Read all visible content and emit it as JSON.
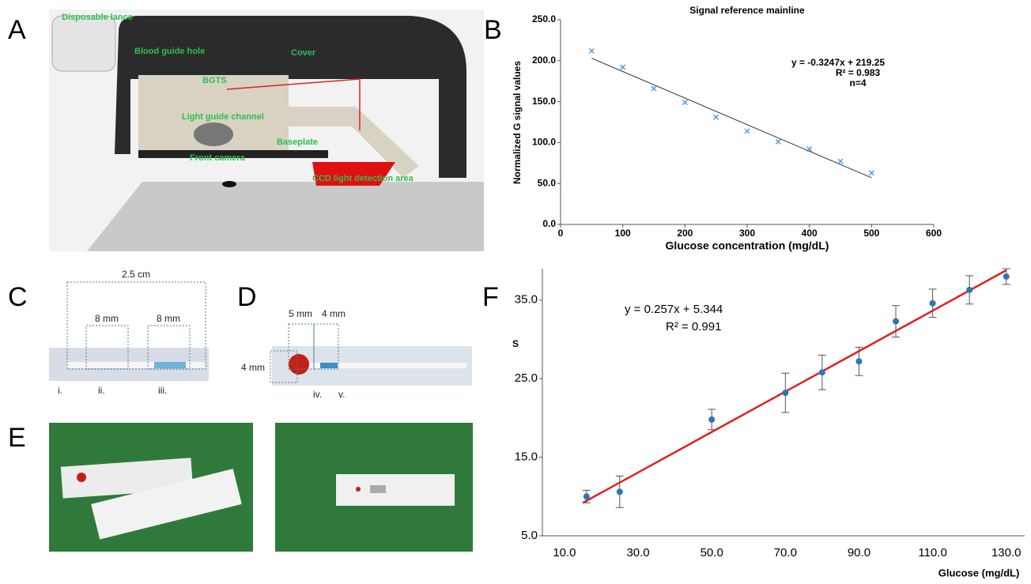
{
  "panel_labels": [
    "A",
    "B",
    "C",
    "D",
    "E",
    "F"
  ],
  "diagram_a": {
    "labels": [
      "Disposable lance",
      "Blood guide hole",
      "Cover",
      "BGTS",
      "Light guide channel",
      "Baseplate",
      "Front camera",
      "CCD light detection area"
    ]
  },
  "diagram_c": {
    "labels": [
      "2.5 cm",
      "8 mm",
      "8 mm",
      "i.",
      "ii.",
      "iii."
    ]
  },
  "diagram_d": {
    "labels": [
      "5 mm",
      "4 mm",
      "4 mm",
      "iv.",
      "v."
    ]
  },
  "chart_data": [
    {
      "type": "scatter",
      "title": "Signal  reference mainline",
      "x_label": "Glucose  concentration (mg/dL)",
      "y_label": "Normalized G signal values",
      "x": [
        50,
        100,
        150,
        200,
        250,
        300,
        350,
        400,
        450,
        500
      ],
      "values": [
        212,
        192,
        166,
        149,
        131,
        114,
        101,
        92,
        77,
        63
      ],
      "marker": "x",
      "color": "#5b9bd5",
      "trend_color": "#333333",
      "trend": {
        "x": [
          50,
          500
        ],
        "values": [
          203,
          57
        ]
      },
      "annotations": [
        "y = -0.3247x + 219.25",
        "R² = 0.983",
        "n=4"
      ],
      "xlim": [
        0,
        600
      ],
      "xticks": [
        0,
        100,
        200,
        300,
        400,
        500,
        600
      ],
      "ylim": [
        0,
        250
      ],
      "yticks": [
        {
          "value": 0,
          "label": "0.0"
        },
        {
          "value": 50,
          "label": "50.0"
        },
        {
          "value": 100,
          "label": "100.0"
        },
        {
          "value": 150,
          "label": "150.0"
        },
        {
          "value": 200,
          "label": "200.0"
        },
        {
          "value": 250,
          "label": "250.0"
        }
      ]
    },
    {
      "type": "scatter",
      "x_label": "Glucose (mg/dL)",
      "y_label": "S",
      "x": [
        16,
        25,
        50,
        70,
        80,
        90,
        100,
        110,
        120,
        130
      ],
      "values": [
        10.0,
        10.6,
        19.8,
        23.2,
        25.8,
        27.2,
        32.3,
        34.6,
        36.3,
        38.0
      ],
      "errors": [
        0.8,
        2.0,
        1.3,
        2.5,
        2.2,
        1.8,
        2.0,
        1.8,
        1.8,
        1.0
      ],
      "marker": "circle",
      "color": "#2e75b6",
      "trend_color": "#e02020",
      "trend": {
        "x": [
          15,
          130
        ],
        "values": [
          9.2,
          38.8
        ]
      },
      "annotations": [
        "y = 0.257x + 5.344",
        "R² = 0.991"
      ],
      "xlim": [
        4,
        135
      ],
      "xticks": [
        {
          "value": 10,
          "label": "10.0"
        },
        {
          "value": 30,
          "label": "30.0"
        },
        {
          "value": 50,
          "label": "50.0"
        },
        {
          "value": 70,
          "label": "70.0"
        },
        {
          "value": 90,
          "label": "90.0"
        },
        {
          "value": 110,
          "label": "110.0"
        },
        {
          "value": 130,
          "label": "130.0"
        }
      ],
      "ylim": [
        5,
        39
      ],
      "yticks": [
        {
          "value": 5,
          "label": "5.0"
        },
        {
          "value": 15,
          "label": "15.0"
        },
        {
          "value": 25,
          "label": "25.0"
        },
        {
          "value": 35,
          "label": "35.0"
        }
      ]
    }
  ]
}
